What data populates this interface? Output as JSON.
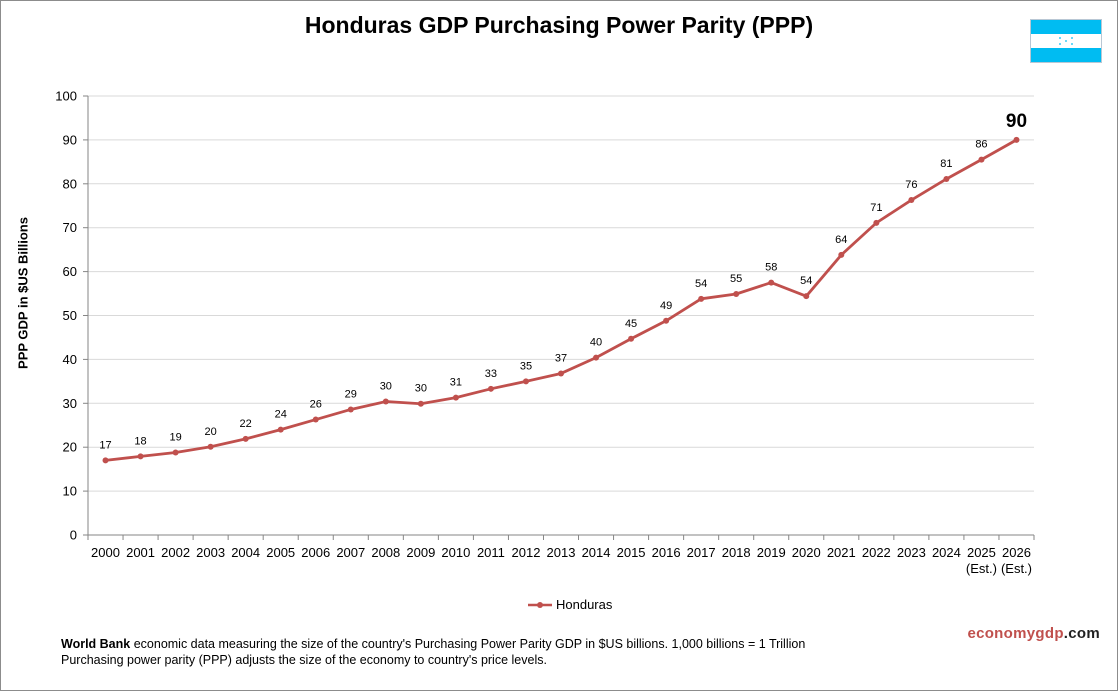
{
  "title": "Honduras GDP Purchasing Power Parity (PPP)",
  "y_axis_label": "PPP GDP in $US Billions",
  "legend_label": "Honduras",
  "footer": {
    "source_bold": "World Bank",
    "line1_rest": " economic data measuring the size of the country's Purchasing Power Parity GDP in $US billions. 1,000 billions = 1 Trillion",
    "line2": "Purchasing power parity (PPP) adjusts the size of the economy to country's price levels."
  },
  "brand": {
    "part1": "economygdp",
    "part2": ".com"
  },
  "colors": {
    "series": "#c0504d",
    "grid": "#d9d9d9",
    "axis": "#868686"
  },
  "flag": {
    "icon": "honduras-flag-icon",
    "stripe": "#00bcf2"
  },
  "chart_data": {
    "type": "line",
    "title": "Honduras GDP Purchasing Power Parity (PPP)",
    "xlabel": "",
    "ylabel": "PPP GDP in $US Billions",
    "ylim": [
      0,
      100
    ],
    "yticks": [
      0,
      10,
      20,
      30,
      40,
      50,
      60,
      70,
      80,
      90,
      100
    ],
    "grid": true,
    "legend": "bottom-center",
    "categories": [
      "2000",
      "2001",
      "2002",
      "2003",
      "2004",
      "2005",
      "2006",
      "2007",
      "2008",
      "2009",
      "2010",
      "2011",
      "2012",
      "2013",
      "2014",
      "2015",
      "2016",
      "2017",
      "2018",
      "2019",
      "2020",
      "2021",
      "2022",
      "2023",
      "2024",
      "2025",
      "2026"
    ],
    "category_sublabels": [
      "",
      "",
      "",
      "",
      "",
      "",
      "",
      "",
      "",
      "",
      "",
      "",
      "",
      "",
      "",
      "",
      "",
      "",
      "",
      "",
      "",
      "",
      "",
      "",
      "",
      "(Est.)",
      "(Est.)"
    ],
    "series": [
      {
        "name": "Honduras",
        "values": [
          17,
          17.9,
          18.8,
          20.1,
          21.9,
          24,
          26.3,
          28.6,
          30.4,
          29.9,
          31.3,
          33.3,
          35,
          36.8,
          40.4,
          44.7,
          48.8,
          53.8,
          54.9,
          57.5,
          54.4,
          63.8,
          71.1,
          76.3,
          81.1,
          85.5,
          90
        ],
        "labels": [
          "17",
          "18",
          "19",
          "20",
          "22",
          "24",
          "26",
          "29",
          "30",
          "30",
          "31",
          "33",
          "35",
          "37",
          "40",
          "45",
          "49",
          "54",
          "55",
          "58",
          "54",
          "64",
          "71",
          "76",
          "81",
          "86",
          "90"
        ]
      }
    ]
  }
}
